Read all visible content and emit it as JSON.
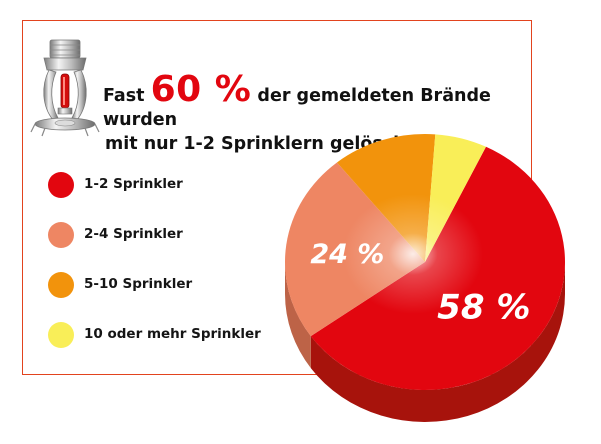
{
  "headline": {
    "prefix": "Fast",
    "highlight": "60 %",
    "suffix": "der gemeldeten Brände wurden",
    "line2": "mit nur 1-2 Sprinklern gelöscht!"
  },
  "icons": {
    "sprinkler": "sprinkler-head-icon"
  },
  "colors": {
    "frame": "#e2431e",
    "highlight": "#e2060f",
    "legend": [
      "#e2060f",
      "#ee8663",
      "#f2930c",
      "#f9ee58"
    ],
    "side": [
      "#a7130c",
      "#bd6347",
      "#b8670c",
      "#bdb039"
    ]
  },
  "chart_data": {
    "type": "pie",
    "title": "",
    "categories": [
      "1-2 Sprinkler",
      "2-4 Sprinkler",
      "5-10 Sprinkler",
      "10 oder mehr Sprinkler"
    ],
    "values": [
      58,
      24,
      12,
      6
    ],
    "data_labels": [
      "58 %",
      "24 %",
      "",
      ""
    ],
    "legend_position": "left"
  }
}
